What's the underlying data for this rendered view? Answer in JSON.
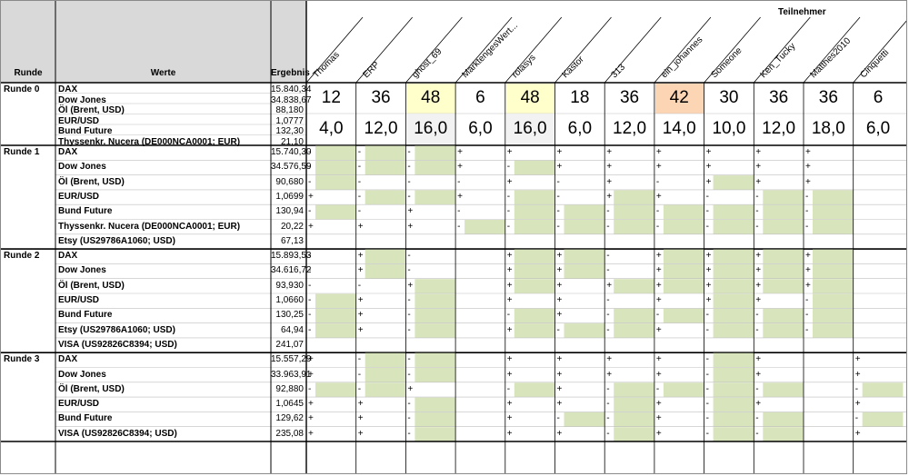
{
  "headers": {
    "runde": "Runde",
    "werte": "Werte",
    "ergebnis": "Ergebnis",
    "teilnehmer": "Teilnehmer"
  },
  "participants": [
    "Thomas",
    "ERP",
    "ghost_69",
    "MarktengesWert...",
    "rolasys",
    "Kastor",
    "313",
    "ein_johannes",
    "Someone",
    "Ken_Tucky",
    "Matthes2010",
    "Cinquetti"
  ],
  "colors": {
    "green": "#d8e4bc",
    "yellow": "#ffffcc",
    "orange": "#fcd5b4",
    "grey_header": "#d9d9d9",
    "light_grey": "#f2f2f2",
    "border": "#000000",
    "thin_line": "#bfbfbf"
  },
  "rounds": [
    {
      "label": "Runde 0",
      "rows": [
        {
          "wert": "DAX",
          "ergebnis": "15.840,34"
        },
        {
          "wert": "Dow Jones",
          "ergebnis": "34.838,67"
        },
        {
          "wert": "Öl (Brent, USD)",
          "ergebnis": "88,180"
        },
        {
          "wert": "EUR/USD",
          "ergebnis": "1,0777"
        },
        {
          "wert": "Bund Future",
          "ergebnis": "132,30"
        },
        {
          "wert": "Thyssenkr. Nucera (DE000NCA0001; EUR)",
          "ergebnis": "21,10"
        }
      ],
      "scores": [
        "12",
        "36",
        "48",
        "6",
        "48",
        "18",
        "36",
        "42",
        "30",
        "36",
        "36",
        "6"
      ],
      "score_fill": [
        "",
        "",
        "yellow",
        "",
        "yellow",
        "",
        "",
        "orange",
        "",
        "",
        "",
        ""
      ],
      "points": [
        "4,0",
        "12,0",
        "16,0",
        "6,0",
        "16,0",
        "6,0",
        "12,0",
        "14,0",
        "10,0",
        "12,0",
        "18,0",
        "6,0"
      ],
      "points_fill": [
        "",
        "",
        "light_grey",
        "",
        "light_grey",
        "",
        "",
        "",
        "",
        "",
        "",
        ""
      ]
    },
    {
      "label": "Runde 1",
      "rows": [
        {
          "wert": "DAX",
          "ergebnis": "15.740,30",
          "tips": [
            "-",
            "-",
            "-",
            "+",
            "+",
            "+",
            "+",
            "+",
            "+",
            "+",
            "+",
            ""
          ],
          "fills": "GGG.......  "
        },
        {
          "wert": "Dow Jones",
          "ergebnis": "34.576,59",
          "tips": [
            "-",
            "-",
            "-",
            "+",
            "-",
            "+",
            "+",
            "+",
            "+",
            "+",
            "+",
            ""
          ],
          "fills": "GGG.G......."
        },
        {
          "wert": "Öl (Brent, USD)",
          "ergebnis": "90,680",
          "tips": [
            "-",
            "-",
            "-",
            "-",
            "+",
            "-",
            "+",
            "-",
            "+",
            "+",
            "+",
            ""
          ],
          "fills": "G.......G..."
        },
        {
          "wert": "EUR/USD",
          "ergebnis": "1,0699",
          "tips": [
            "+",
            "-",
            "-",
            "+",
            "-",
            "-",
            "+",
            "+",
            "-",
            "-",
            "-",
            ""
          ],
          "fills": ".GG.G.G..GG."
        },
        {
          "wert": "Bund Future",
          "ergebnis": "130,94",
          "tips": [
            "-",
            "-",
            "+",
            "-",
            "-",
            "-",
            "-",
            "-",
            "-",
            "-",
            "-",
            ""
          ],
          "fills": "G...GGGGGGG."
        },
        {
          "wert": "Thyssenkr. Nucera (DE000NCA0001; EUR)",
          "ergebnis": "20,22",
          "tips": [
            "+",
            "+",
            "+",
            "-",
            "-",
            "-",
            "-",
            "-",
            "-",
            "-",
            "-",
            ""
          ],
          "fills": "...GGGGGGGG."
        },
        {
          "wert": "Etsy (US29786A1060; USD)",
          "ergebnis": "67,13",
          "tips": [
            "",
            "",
            "",
            "",
            "",
            "",
            "",
            "",
            "",
            "",
            "",
            ""
          ],
          "fills": "............"
        }
      ]
    },
    {
      "label": "Runde 2",
      "rows": [
        {
          "wert": "DAX",
          "ergebnis": "15.893,53",
          "tips": [
            "-",
            "+",
            "-",
            "",
            "+",
            "+",
            "-",
            "+",
            "+",
            "+",
            "+",
            ""
          ],
          "fills": ".G..GG.GGGG."
        },
        {
          "wert": "Dow Jones",
          "ergebnis": "34.616,72",
          "tips": [
            "-",
            "+",
            "-",
            "",
            "+",
            "+",
            "-",
            "+",
            "+",
            "+",
            "+",
            ""
          ],
          "fills": ".G..GG.GGGG."
        },
        {
          "wert": "Öl (Brent, USD)",
          "ergebnis": "93,930",
          "tips": [
            "-",
            "-",
            "+",
            "",
            "+",
            "+",
            "+",
            "+",
            "+",
            "+",
            "+",
            ""
          ],
          "fills": "..G.G.GGGGG."
        },
        {
          "wert": "EUR/USD",
          "ergebnis": "1,0660",
          "tips": [
            "-",
            "+",
            "-",
            "",
            "+",
            "+",
            "-",
            "+",
            "+",
            "+",
            "-",
            ""
          ],
          "fills": "G.G.....G.G."
        },
        {
          "wert": "Bund Future",
          "ergebnis": "130,25",
          "tips": [
            "-",
            "+",
            "-",
            "",
            "-",
            "+",
            "-",
            "-",
            "-",
            "-",
            "-",
            ""
          ],
          "fills": "G.G.G.GGGGG."
        },
        {
          "wert": "Etsy (US29786A1060; USD)",
          "ergebnis": "64,94",
          "tips": [
            "-",
            "+",
            "-",
            "",
            "+",
            "-",
            "-",
            "+",
            "-",
            "-",
            "-",
            ""
          ],
          "fills": "G.G.GGG.GGG."
        },
        {
          "wert": "VISA (US92826C8394; USD)",
          "ergebnis": "241,07",
          "tips": [
            "",
            "",
            "",
            "",
            "",
            "",
            "",
            "",
            "",
            "",
            "",
            ""
          ],
          "fills": "............"
        }
      ]
    },
    {
      "label": "Runde 3",
      "rows": [
        {
          "wert": "DAX",
          "ergebnis": "15.557,29",
          "tips": [
            "+",
            "-",
            "-",
            "",
            "+",
            "+",
            "+",
            "+",
            "-",
            "+",
            "",
            "+"
          ],
          "fills": ".GG.....G..."
        },
        {
          "wert": "Dow Jones",
          "ergebnis": "33.963,91",
          "tips": [
            "+",
            "-",
            "-",
            "",
            "+",
            "+",
            "+",
            "+",
            "-",
            "+",
            "",
            "+"
          ],
          "fills": ".GG.....G..."
        },
        {
          "wert": "Öl (Brent, USD)",
          "ergebnis": "92,880",
          "tips": [
            "-",
            "-",
            "+",
            "",
            "-",
            "+",
            "-",
            "-",
            "-",
            "-",
            "",
            "-"
          ],
          "fills": "GG..G.GGGG.G"
        },
        {
          "wert": "EUR/USD",
          "ergebnis": "1,0645",
          "tips": [
            "+",
            "+",
            "-",
            "",
            "+",
            "+",
            "-",
            "+",
            "-",
            "+",
            "",
            "+"
          ],
          "fills": "..G...G.G..."
        },
        {
          "wert": "Bund Future",
          "ergebnis": "129,62",
          "tips": [
            "+",
            "+",
            "-",
            "",
            "+",
            "-",
            "-",
            "+",
            "-",
            "-",
            "",
            "-"
          ],
          "fills": "..G..GG.GG.G"
        },
        {
          "wert": "VISA (US92826C8394; USD)",
          "ergebnis": "235,08",
          "tips": [
            "+",
            "+",
            "-",
            "",
            "+",
            "+",
            "-",
            "+",
            "-",
            "-",
            "",
            "+"
          ],
          "fills": "..G...G.GG.."
        }
      ]
    }
  ]
}
